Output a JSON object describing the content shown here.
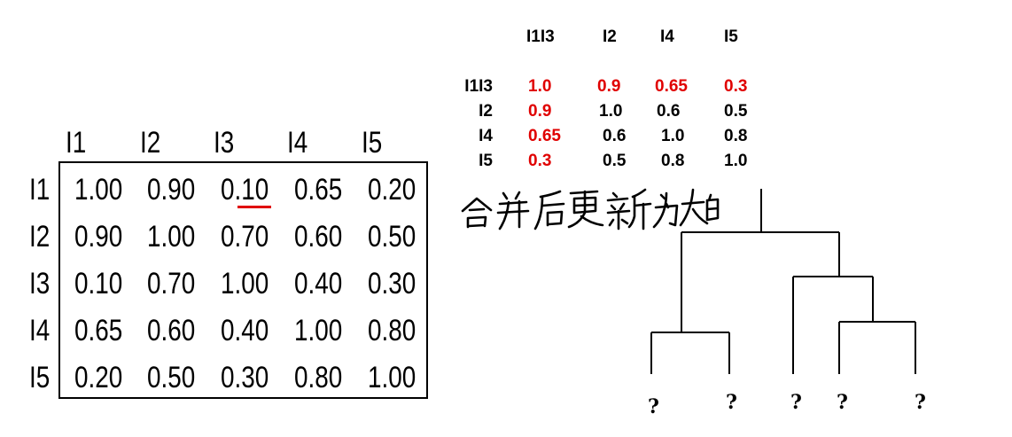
{
  "left_matrix": {
    "col_headers": [
      "I1",
      "I2",
      "I3",
      "I4",
      "I5"
    ],
    "row_headers": [
      "I1",
      "I2",
      "I3",
      "I4",
      "I5"
    ],
    "rows": [
      [
        "1.00",
        "0.90",
        "0.10",
        "0.65",
        "0.20"
      ],
      [
        "0.90",
        "1.00",
        "0.70",
        "0.60",
        "0.50"
      ],
      [
        "0.10",
        "0.70",
        "1.00",
        "0.40",
        "0.30"
      ],
      [
        "0.65",
        "0.60",
        "0.40",
        "1.00",
        "0.80"
      ],
      [
        "0.20",
        "0.50",
        "0.30",
        "0.80",
        "1.00"
      ]
    ],
    "underlined_cell": "I1,I3",
    "underline_color": "#e00000"
  },
  "merged_matrix": {
    "col_headers": [
      "I1I3",
      "I2",
      "I4",
      "I5"
    ],
    "row_headers": [
      "I1I3",
      "I2",
      "I4",
      "I5"
    ],
    "rows": [
      [
        "1.0",
        "0.9",
        "0.65",
        "0.3"
      ],
      [
        "0.9",
        "1.0",
        "0.6",
        "0.5"
      ],
      [
        "0.65",
        "0.6",
        "1.0",
        "0.8"
      ],
      [
        "0.3",
        "0.5",
        "0.8",
        "1.0"
      ]
    ],
    "highlight_color": "#e00000"
  },
  "note": {
    "text": "合并后更新为大的"
  },
  "dendrogram": {
    "leaves": [
      "?",
      "?",
      "?",
      "?",
      "?"
    ]
  }
}
